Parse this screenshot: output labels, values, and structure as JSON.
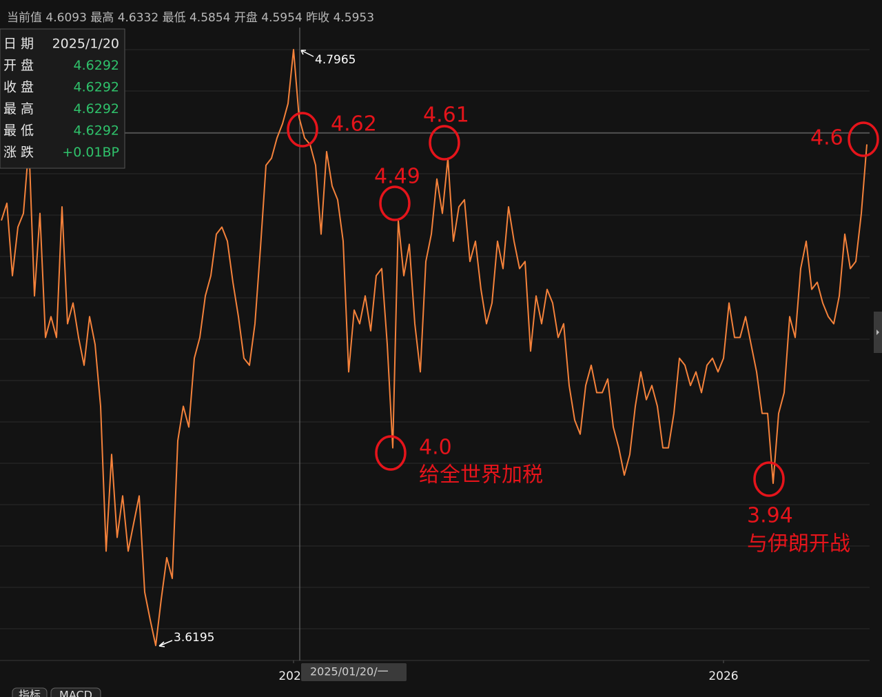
{
  "header": {
    "text": "当前值 4.6093 最高 4.6332 最低 4.5854 开盘 4.5954 昨收 4.5953"
  },
  "tooltip": {
    "rows": [
      [
        "日 期",
        "2025/1/20"
      ],
      [
        "开 盘",
        "4.6292"
      ],
      [
        "收 盘",
        "4.6292"
      ],
      [
        "最 高",
        "4.6292"
      ],
      [
        "最 低",
        "4.6292"
      ],
      [
        "涨 跌",
        "+0.01BP"
      ]
    ]
  },
  "crosshair_label": "2025/01/20/一",
  "tabs": [
    "指标",
    "MACD"
  ],
  "chart_data": {
    "type": "line",
    "color": "#f5823b",
    "values": [
      4.459,
      4.493,
      4.35,
      4.446,
      4.473,
      4.609,
      4.31,
      4.473,
      4.228,
      4.269,
      4.228,
      4.486,
      4.255,
      4.296,
      4.228,
      4.173,
      4.269,
      4.214,
      4.092,
      3.806,
      3.997,
      3.833,
      3.915,
      3.806,
      3.861,
      3.915,
      3.725,
      3.67,
      3.6195,
      3.711,
      3.793,
      3.752,
      4.024,
      4.092,
      4.051,
      4.187,
      4.228,
      4.31,
      4.35,
      4.432,
      4.446,
      4.418,
      4.337,
      4.269,
      4.187,
      4.173,
      4.255,
      4.405,
      4.568,
      4.582,
      4.622,
      4.65,
      4.69,
      4.7965,
      4.663,
      4.622,
      4.609,
      4.568,
      4.432,
      4.595,
      4.527,
      4.5,
      4.418,
      4.16,
      4.282,
      4.255,
      4.31,
      4.241,
      4.35,
      4.364,
      4.214,
      4.01,
      4.459,
      4.35,
      4.412,
      4.255,
      4.16,
      4.378,
      4.432,
      4.541,
      4.473,
      4.582,
      4.418,
      4.486,
      4.5,
      4.378,
      4.418,
      4.323,
      4.255,
      4.296,
      4.418,
      4.364,
      4.486,
      4.418,
      4.364,
      4.378,
      4.201,
      4.31,
      4.255,
      4.323,
      4.296,
      4.228,
      4.255,
      4.133,
      4.065,
      4.037,
      4.133,
      4.173,
      4.119,
      4.119,
      4.146,
      4.051,
      4.01,
      3.956,
      3.997,
      4.092,
      4.16,
      4.105,
      4.133,
      4.092,
      4.01,
      4.01,
      4.078,
      4.187,
      4.173,
      4.133,
      4.16,
      4.119,
      4.173,
      4.187,
      4.16,
      4.187,
      4.296,
      4.228,
      4.228,
      4.269,
      4.214,
      4.16,
      4.078,
      4.078,
      3.94,
      4.078,
      4.119,
      4.269,
      4.228,
      4.364,
      4.418,
      4.323,
      4.337,
      4.296,
      4.269,
      4.255,
      4.31,
      4.432,
      4.364,
      4.378,
      4.473,
      4.6093
    ],
    "xlim": [
      0,
      157
    ],
    "ylim": [
      3.59,
      4.84
    ],
    "xticks": [
      {
        "value": 53,
        "label": "2025"
      },
      {
        "value": 131,
        "label": "2026"
      }
    ],
    "max_label": "4.7965",
    "min_label": "3.6195",
    "annotations": [
      {
        "text": "4.62"
      },
      {
        "text": "4.49"
      },
      {
        "text": "4.61"
      },
      {
        "text": "4.0",
        "note": "给全世界加税"
      },
      {
        "text": "3.94",
        "note": "与伊朗开战"
      },
      {
        "text": "4.6"
      }
    ]
  }
}
